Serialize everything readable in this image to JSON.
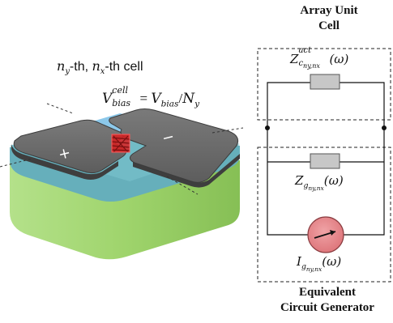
{
  "header": {
    "title_line1": "Array Unit",
    "title_line2": "Cell"
  },
  "footer": {
    "title_line1": "Equivalent",
    "title_line2": "Circuit Generator"
  },
  "cell_label": {
    "ny": "n",
    "ny_sub": "y",
    "sep": "-th, ",
    "nx": "n",
    "nx_sub": "x",
    "suffix": "-th cell"
  },
  "bias_label": {
    "V": "V",
    "sup": "cell",
    "sub": "bias",
    "eq": " = ",
    "V2": "V",
    "sub2": "bias",
    "slash": "/",
    "N": "N",
    "N_sub": "y"
  },
  "circuit": {
    "z_act": {
      "Z": "Z",
      "sup": "act",
      "sub": "c",
      "sub_sub": "ny,nx",
      "omega": "(ω)"
    },
    "z_g": {
      "Z": "Z",
      "sub": "g",
      "sub_sub": "ny,nx",
      "omega": "(ω)"
    },
    "i_g": {
      "I": "I",
      "sub": "g",
      "sub_sub": "ny,nx",
      "omega": "(ω)"
    }
  },
  "device": {
    "plus_sign": "+",
    "minus_sign": "−"
  },
  "colors": {
    "substrate": "#9ed46a",
    "substrate_side": "#8cc45a",
    "dielectric": "#6fb7c2",
    "electrode": "#6f6f6f",
    "electrode_edge": "#3c3c3c",
    "channel": "#88c4e6",
    "emitter": "#e02828",
    "resistor": "#c8c8c8",
    "source": "#e8878c"
  }
}
